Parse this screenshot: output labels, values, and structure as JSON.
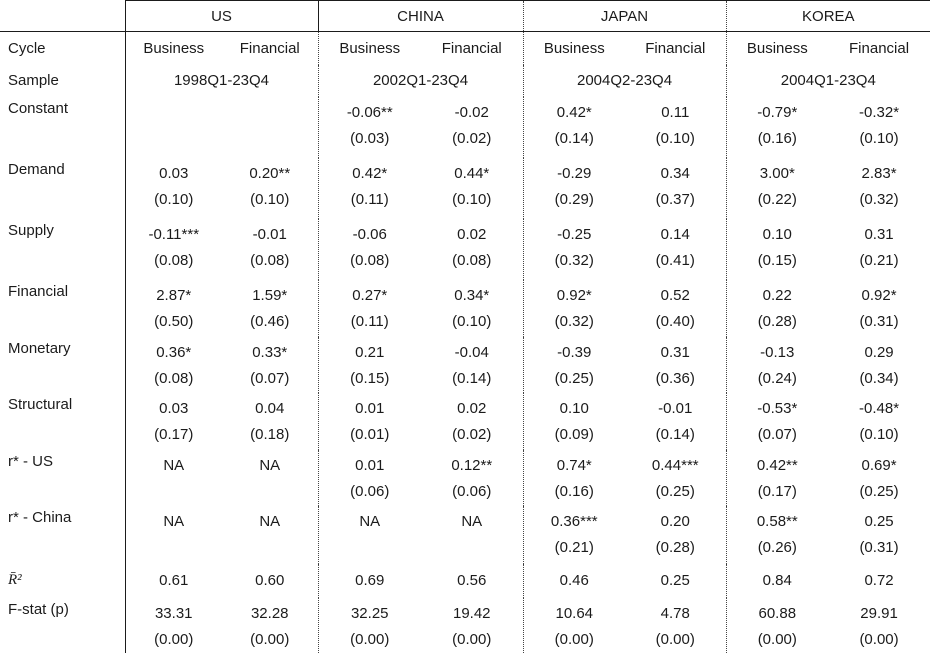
{
  "table": {
    "cycle_label": "Cycle",
    "sample_label": "Sample",
    "cycle_types": [
      "Business",
      "Financial"
    ],
    "countries": [
      {
        "name": "US",
        "sample": "1998Q1-23Q4"
      },
      {
        "name": "CHINA",
        "sample": "2002Q1-23Q4"
      },
      {
        "name": "JAPAN",
        "sample": "2004Q2-23Q4"
      },
      {
        "name": "KOREA",
        "sample": "2004Q1-23Q4"
      }
    ],
    "rows": [
      {
        "label": "Constant",
        "cells": [
          null,
          null,
          {
            "c": "-0.06**",
            "se": "(0.03)"
          },
          {
            "c": "-0.02",
            "se": "(0.02)"
          },
          {
            "c": "0.42*",
            "se": "(0.14)"
          },
          {
            "c": "0.11",
            "se": "(0.10)"
          },
          {
            "c": "-0.79*",
            "se": "(0.16)"
          },
          {
            "c": "-0.32*",
            "se": "(0.10)"
          }
        ]
      },
      {
        "label": "Demand",
        "cells": [
          {
            "c": "0.03",
            "se": "(0.10)"
          },
          {
            "c": "0.20**",
            "se": "(0.10)"
          },
          {
            "c": "0.42*",
            "se": "(0.11)"
          },
          {
            "c": "0.44*",
            "se": "(0.10)"
          },
          {
            "c": "-0.29",
            "se": "(0.29)"
          },
          {
            "c": "0.34",
            "se": "(0.37)"
          },
          {
            "c": "3.00*",
            "se": "(0.22)"
          },
          {
            "c": "2.83*",
            "se": "(0.32)"
          }
        ]
      },
      {
        "label": "Supply",
        "cells": [
          {
            "c": "-0.11***",
            "se": "(0.08)"
          },
          {
            "c": "-0.01",
            "se": "(0.08)"
          },
          {
            "c": "-0.06",
            "se": "(0.08)"
          },
          {
            "c": "0.02",
            "se": "(0.08)"
          },
          {
            "c": "-0.25",
            "se": "(0.32)"
          },
          {
            "c": "0.14",
            "se": "(0.41)"
          },
          {
            "c": "0.10",
            "se": "(0.15)"
          },
          {
            "c": "0.31",
            "se": "(0.21)"
          }
        ]
      },
      {
        "label": "Financial",
        "cells": [
          {
            "c": "2.87*",
            "se": "(0.50)"
          },
          {
            "c": "1.59*",
            "se": "(0.46)"
          },
          {
            "c": "0.27*",
            "se": "(0.11)"
          },
          {
            "c": "0.34*",
            "se": "(0.10)"
          },
          {
            "c": "0.92*",
            "se": "(0.32)"
          },
          {
            "c": "0.52",
            "se": "(0.40)"
          },
          {
            "c": "0.22",
            "se": "(0.28)"
          },
          {
            "c": "0.92*",
            "se": "(0.31)"
          }
        ]
      },
      {
        "label": "Monetary",
        "cells": [
          {
            "c": "0.36*",
            "se": "(0.08)"
          },
          {
            "c": "0.33*",
            "se": "(0.07)"
          },
          {
            "c": "0.21",
            "se": "(0.15)"
          },
          {
            "c": "-0.04",
            "se": "(0.14)"
          },
          {
            "c": "-0.39",
            "se": "(0.25)"
          },
          {
            "c": "0.31",
            "se": "(0.36)"
          },
          {
            "c": "-0.13",
            "se": "(0.24)"
          },
          {
            "c": "0.29",
            "se": "(0.34)"
          }
        ]
      },
      {
        "label": "Structural",
        "cells": [
          {
            "c": "0.03",
            "se": "(0.17)"
          },
          {
            "c": "0.04",
            "se": "(0.18)"
          },
          {
            "c": "0.01",
            "se": "(0.01)"
          },
          {
            "c": "0.02",
            "se": "(0.02)"
          },
          {
            "c": "0.10",
            "se": "(0.09)"
          },
          {
            "c": "-0.01",
            "se": "(0.14)"
          },
          {
            "c": "-0.53*",
            "se": "(0.07)"
          },
          {
            "c": "-0.48*",
            "se": "(0.10)"
          }
        ]
      },
      {
        "label": "r* - US",
        "cells": [
          {
            "c": "NA"
          },
          {
            "c": "NA"
          },
          {
            "c": "0.01",
            "se": "(0.06)"
          },
          {
            "c": "0.12**",
            "se": "(0.06)"
          },
          {
            "c": "0.74*",
            "se": "(0.16)"
          },
          {
            "c": "0.44***",
            "se": "(0.25)"
          },
          {
            "c": "0.42**",
            "se": "(0.17)"
          },
          {
            "c": "0.69*",
            "se": "(0.25)"
          }
        ]
      },
      {
        "label": "r* - China",
        "cells": [
          {
            "c": "NA"
          },
          {
            "c": "NA"
          },
          {
            "c": "NA"
          },
          {
            "c": "NA"
          },
          {
            "c": "0.36***",
            "se": "(0.21)"
          },
          {
            "c": "0.20",
            "se": "(0.28)"
          },
          {
            "c": "0.58**",
            "se": "(0.26)"
          },
          {
            "c": "0.25",
            "se": "(0.31)"
          }
        ]
      },
      {
        "label": "R̄²",
        "math": true,
        "cells": [
          {
            "c": "0.61"
          },
          {
            "c": "0.60"
          },
          {
            "c": "0.69"
          },
          {
            "c": "0.56"
          },
          {
            "c": "0.46"
          },
          {
            "c": "0.25"
          },
          {
            "c": "0.84"
          },
          {
            "c": "0.72"
          }
        ]
      },
      {
        "label": "F-stat (p)",
        "cells": [
          {
            "c": "33.31",
            "se": "(0.00)"
          },
          {
            "c": "32.28",
            "se": "(0.00)"
          },
          {
            "c": "32.25",
            "se": "(0.00)"
          },
          {
            "c": "19.42",
            "se": "(0.00)"
          },
          {
            "c": "10.64",
            "se": "(0.00)"
          },
          {
            "c": "4.78",
            "se": "(0.00)"
          },
          {
            "c": "60.88",
            "se": "(0.00)"
          },
          {
            "c": "29.91",
            "se": "(0.00)"
          }
        ]
      }
    ]
  }
}
